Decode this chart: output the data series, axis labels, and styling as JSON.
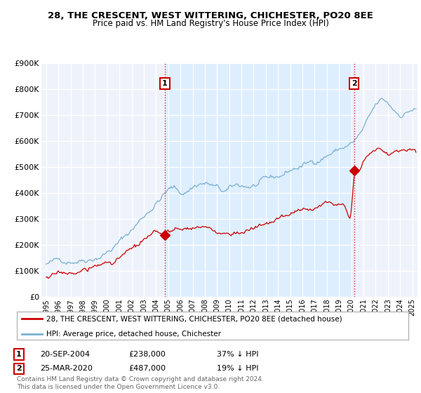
{
  "title": "28, THE CRESCENT, WEST WITTERING, CHICHESTER, PO20 8EE",
  "subtitle": "Price paid vs. HM Land Registry's House Price Index (HPI)",
  "legend_line1": "28, THE CRESCENT, WEST WITTERING, CHICHESTER, PO20 8EE (detached house)",
  "legend_line2": "HPI: Average price, detached house, Chichester",
  "annotation1_date": "20-SEP-2004",
  "annotation1_price": "£238,000",
  "annotation1_hpi": "37% ↓ HPI",
  "annotation2_date": "25-MAR-2020",
  "annotation2_price": "£487,000",
  "annotation2_hpi": "19% ↓ HPI",
  "footer": "Contains HM Land Registry data © Crown copyright and database right 2024.\nThis data is licensed under the Open Government Licence v3.0.",
  "red_color": "#cc0000",
  "blue_color": "#7ab0d4",
  "shade_color": "#ddeeff",
  "background_color": "#eef3fb",
  "ylim": [
    0,
    900000
  ],
  "yticks": [
    0,
    100000,
    200000,
    300000,
    400000,
    500000,
    600000,
    700000,
    800000,
    900000
  ],
  "ytick_labels": [
    "£0",
    "£100K",
    "£200K",
    "£300K",
    "£400K",
    "£500K",
    "£600K",
    "£700K",
    "£800K",
    "£900K"
  ],
  "sale1_x": 2004.72,
  "sale1_y": 238000,
  "sale2_x": 2020.23,
  "sale2_y": 487000,
  "vline1_x": 2004.72,
  "vline2_x": 2020.23,
  "xlim_left": 1994.6,
  "xlim_right": 2025.4
}
